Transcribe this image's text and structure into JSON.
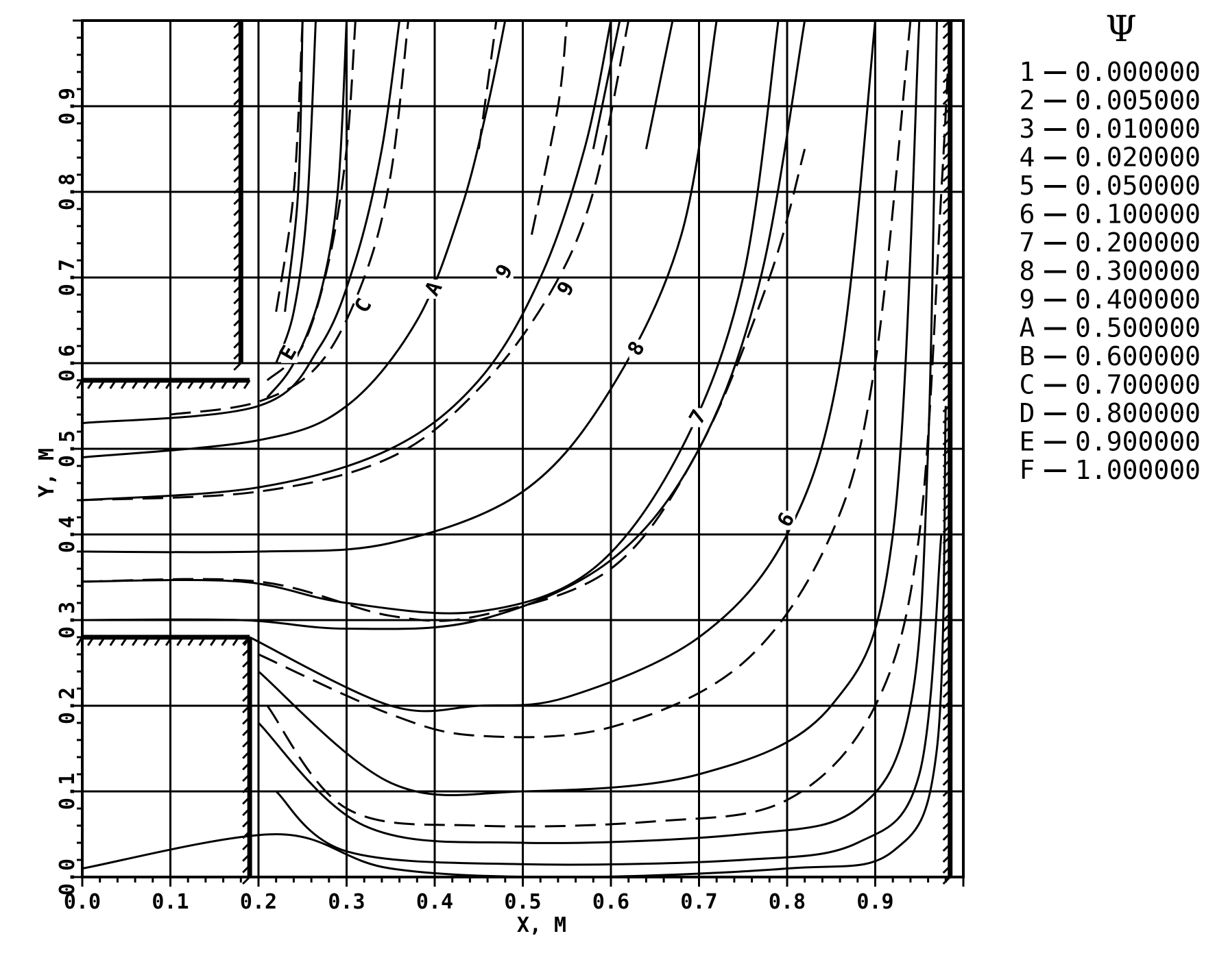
{
  "chart_data": {
    "type": "line",
    "title": "",
    "xlabel": "X, M",
    "ylabel": "Y, M",
    "xlim": [
      0.0,
      1.0
    ],
    "ylim": [
      0.0,
      1.0
    ],
    "xticks": [
      "0.0",
      "0.1",
      "0.2",
      "0.3",
      "0.4",
      "0.5",
      "0.6",
      "0.7",
      "0.8",
      "0.9"
    ],
    "yticks": [
      "0.0",
      "0.1",
      "0.2",
      "0.3",
      "0.4",
      "0.5",
      "0.6",
      "0.7",
      "0.8",
      "0.9"
    ],
    "xtick_values": [
      0,
      0.1,
      0.2,
      0.3,
      0.4,
      0.5,
      0.6,
      0.7,
      0.8,
      0.9
    ],
    "ytick_values": [
      0,
      0.1,
      0.2,
      0.3,
      0.4,
      0.5,
      0.6,
      0.7,
      0.8,
      0.9
    ],
    "grid": true,
    "legend": {
      "title": "Ψ",
      "position": "right",
      "entries": [
        {
          "key": "1",
          "value": "0.000000"
        },
        {
          "key": "2",
          "value": "0.005000"
        },
        {
          "key": "3",
          "value": "0.010000"
        },
        {
          "key": "4",
          "value": "0.020000"
        },
        {
          "key": "5",
          "value": "0.050000"
        },
        {
          "key": "6",
          "value": "0.100000"
        },
        {
          "key": "7",
          "value": "0.200000"
        },
        {
          "key": "8",
          "value": "0.300000"
        },
        {
          "key": "9",
          "value": "0.400000"
        },
        {
          "key": "A",
          "value": "0.500000"
        },
        {
          "key": "B",
          "value": "0.600000"
        },
        {
          "key": "C",
          "value": "0.700000"
        },
        {
          "key": "D",
          "value": "0.800000"
        },
        {
          "key": "E",
          "value": "0.900000"
        },
        {
          "key": "F",
          "value": "1.000000"
        }
      ]
    },
    "walls": [
      {
        "from": [
          0.0,
          0.58
        ],
        "to": [
          0.19,
          0.58
        ]
      },
      {
        "from": [
          0.0,
          0.28
        ],
        "to": [
          0.19,
          0.28
        ]
      },
      {
        "from": [
          0.19,
          0.28
        ],
        "to": [
          0.19,
          0.0
        ]
      },
      {
        "from": [
          0.18,
          0.6
        ],
        "to": [
          0.18,
          1.0
        ]
      },
      {
        "from": [
          0.985,
          0.0
        ],
        "to": [
          0.985,
          1.0
        ]
      }
    ],
    "solid_series": [
      {
        "points": [
          [
            0.0,
            0.01
          ],
          [
            0.22,
            0.05
          ],
          [
            0.35,
            0.01
          ],
          [
            0.55,
            0.0
          ],
          [
            0.8,
            0.01
          ],
          [
            0.92,
            0.03
          ],
          [
            0.97,
            0.15
          ],
          [
            0.98,
            0.55
          ]
        ]
      },
      {
        "points": [
          [
            0.22,
            0.1
          ],
          [
            0.3,
            0.03
          ],
          [
            0.5,
            0.015
          ],
          [
            0.75,
            0.02
          ],
          [
            0.88,
            0.04
          ],
          [
            0.95,
            0.12
          ],
          [
            0.975,
            0.4
          ]
        ]
      },
      {
        "points": [
          [
            0.2,
            0.18
          ],
          [
            0.32,
            0.06
          ],
          [
            0.5,
            0.04
          ],
          [
            0.75,
            0.05
          ],
          [
            0.88,
            0.08
          ],
          [
            0.94,
            0.2
          ],
          [
            0.96,
            0.5
          ],
          [
            0.97,
            1.0
          ]
        ]
      },
      {
        "points": [
          [
            0.2,
            0.24
          ],
          [
            0.35,
            0.11
          ],
          [
            0.5,
            0.1
          ],
          [
            0.7,
            0.12
          ],
          [
            0.85,
            0.2
          ],
          [
            0.92,
            0.4
          ],
          [
            0.95,
            1.0
          ]
        ]
      },
      {
        "points": [
          [
            0.19,
            0.28
          ],
          [
            0.35,
            0.2
          ],
          [
            0.45,
            0.2
          ],
          [
            0.55,
            0.21
          ],
          [
            0.7,
            0.28
          ],
          [
            0.8,
            0.4
          ],
          [
            0.86,
            0.6
          ],
          [
            0.9,
            1.0
          ]
        ]
      },
      {
        "points": [
          [
            0.0,
            0.3
          ],
          [
            0.18,
            0.3
          ],
          [
            0.3,
            0.29
          ],
          [
            0.45,
            0.3
          ],
          [
            0.6,
            0.37
          ],
          [
            0.7,
            0.5
          ],
          [
            0.77,
            0.7
          ],
          [
            0.82,
            1.0
          ]
        ]
      },
      {
        "points": [
          [
            0.0,
            0.345
          ],
          [
            0.18,
            0.345
          ],
          [
            0.3,
            0.32
          ],
          [
            0.45,
            0.31
          ],
          [
            0.58,
            0.36
          ],
          [
            0.68,
            0.5
          ],
          [
            0.75,
            0.7
          ],
          [
            0.79,
            1.0
          ]
        ]
      },
      {
        "points": [
          [
            0.0,
            0.38
          ],
          [
            0.2,
            0.38
          ],
          [
            0.35,
            0.39
          ],
          [
            0.5,
            0.45
          ],
          [
            0.6,
            0.57
          ],
          [
            0.68,
            0.75
          ],
          [
            0.72,
            1.0
          ]
        ]
      },
      {
        "points": [
          [
            0.0,
            0.44
          ],
          [
            0.2,
            0.455
          ],
          [
            0.35,
            0.5
          ],
          [
            0.45,
            0.58
          ],
          [
            0.52,
            0.7
          ],
          [
            0.57,
            0.85
          ],
          [
            0.6,
            1.0
          ]
        ]
      },
      {
        "points": [
          [
            0.0,
            0.49
          ],
          [
            0.2,
            0.51
          ],
          [
            0.3,
            0.55
          ],
          [
            0.38,
            0.65
          ],
          [
            0.43,
            0.78
          ],
          [
            0.46,
            0.9
          ],
          [
            0.48,
            1.0
          ]
        ]
      },
      {
        "points": [
          [
            0.0,
            0.53
          ],
          [
            0.2,
            0.55
          ],
          [
            0.27,
            0.62
          ],
          [
            0.31,
            0.72
          ],
          [
            0.34,
            0.85
          ],
          [
            0.36,
            1.0
          ]
        ]
      },
      {
        "points": [
          [
            0.21,
            0.56
          ],
          [
            0.24,
            0.6
          ],
          [
            0.27,
            0.68
          ],
          [
            0.29,
            0.8
          ],
          [
            0.3,
            1.0
          ]
        ]
      },
      {
        "points": [
          [
            0.22,
            0.6
          ],
          [
            0.24,
            0.66
          ],
          [
            0.255,
            0.78
          ],
          [
            0.265,
            1.0
          ]
        ]
      },
      {
        "points": [
          [
            0.23,
            0.66
          ],
          [
            0.245,
            0.8
          ],
          [
            0.25,
            1.0
          ]
        ]
      },
      {
        "points": [
          [
            0.58,
            0.85
          ],
          [
            0.6,
            0.95
          ],
          [
            0.61,
            1.0
          ]
        ]
      },
      {
        "points": [
          [
            0.64,
            0.85
          ],
          [
            0.66,
            0.95
          ],
          [
            0.67,
            1.0
          ]
        ]
      }
    ],
    "dashed_series": [
      {
        "points": [
          [
            0.21,
            0.2
          ],
          [
            0.3,
            0.08
          ],
          [
            0.45,
            0.06
          ],
          [
            0.65,
            0.065
          ],
          [
            0.8,
            0.09
          ],
          [
            0.9,
            0.2
          ],
          [
            0.95,
            0.4
          ],
          [
            0.975,
            0.8
          ],
          [
            0.985,
            1.0
          ]
        ]
      },
      {
        "points": [
          [
            0.2,
            0.26
          ],
          [
            0.35,
            0.19
          ],
          [
            0.45,
            0.165
          ],
          [
            0.6,
            0.175
          ],
          [
            0.75,
            0.25
          ],
          [
            0.85,
            0.4
          ],
          [
            0.9,
            0.6
          ],
          [
            0.94,
            1.0
          ]
        ]
      },
      {
        "points": [
          [
            0.0,
            0.345
          ],
          [
            0.2,
            0.345
          ],
          [
            0.35,
            0.305
          ],
          [
            0.45,
            0.305
          ],
          [
            0.6,
            0.36
          ],
          [
            0.7,
            0.5
          ],
          [
            0.78,
            0.7
          ],
          [
            0.82,
            0.85
          ]
        ]
      },
      {
        "points": [
          [
            0.0,
            0.44
          ],
          [
            0.2,
            0.45
          ],
          [
            0.35,
            0.49
          ],
          [
            0.45,
            0.57
          ],
          [
            0.53,
            0.68
          ],
          [
            0.58,
            0.8
          ],
          [
            0.62,
            1.0
          ]
        ]
      },
      {
        "points": [
          [
            0.1,
            0.54
          ],
          [
            0.2,
            0.555
          ],
          [
            0.27,
            0.6
          ],
          [
            0.32,
            0.7
          ],
          [
            0.35,
            0.82
          ],
          [
            0.37,
            1.0
          ]
        ]
      },
      {
        "points": [
          [
            0.21,
            0.58
          ],
          [
            0.25,
            0.62
          ],
          [
            0.28,
            0.72
          ],
          [
            0.3,
            0.85
          ],
          [
            0.31,
            1.0
          ]
        ]
      },
      {
        "points": [
          [
            0.22,
            0.66
          ],
          [
            0.24,
            0.8
          ],
          [
            0.25,
            1.0
          ]
        ]
      },
      {
        "points": [
          [
            0.45,
            0.85
          ],
          [
            0.47,
            1.0
          ]
        ]
      },
      {
        "points": [
          [
            0.51,
            0.75
          ],
          [
            0.54,
            0.9
          ],
          [
            0.55,
            1.0
          ]
        ]
      }
    ],
    "curve_labels": [
      {
        "text": "E",
        "x": 0.235,
        "y": 0.605
      },
      {
        "text": "C",
        "x": 0.32,
        "y": 0.66
      },
      {
        "text": "A",
        "x": 0.4,
        "y": 0.68
      },
      {
        "text": "9",
        "x": 0.48,
        "y": 0.7
      },
      {
        "text": "9",
        "x": 0.55,
        "y": 0.68
      },
      {
        "text": "8",
        "x": 0.63,
        "y": 0.61
      },
      {
        "text": "7",
        "x": 0.7,
        "y": 0.53
      },
      {
        "text": "6",
        "x": 0.8,
        "y": 0.41
      }
    ]
  }
}
